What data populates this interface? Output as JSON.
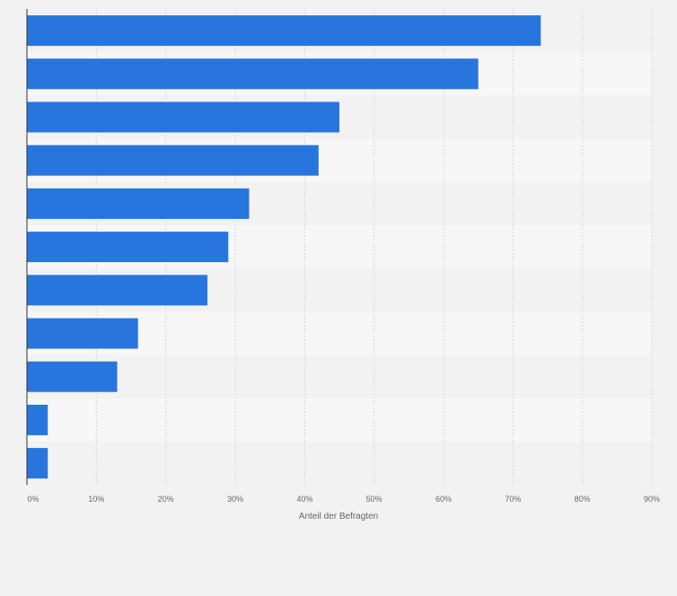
{
  "chart_data": {
    "type": "bar",
    "orientation": "horizontal",
    "categories": [
      "",
      "",
      "",
      "",
      "",
      "",
      "",
      "",
      "",
      "",
      ""
    ],
    "values": [
      74,
      65,
      45,
      42,
      32,
      29,
      26,
      16,
      13,
      3,
      3
    ],
    "xlabel": "Anteil der Befragten",
    "xlim": [
      0,
      90
    ],
    "xticks": [
      0,
      10,
      20,
      30,
      40,
      50,
      60,
      70,
      80,
      90
    ],
    "xtick_labels": [
      "0%",
      "10%",
      "20%",
      "30%",
      "40%",
      "50%",
      "60%",
      "70%",
      "80%",
      "90%"
    ],
    "grid": true,
    "bar_color": "#2876dd"
  },
  "colors": {
    "background": "#f2f2f2",
    "band_light": "#f7f7f8",
    "band_dark": "#f2f2f3",
    "gridline": "#d7d7d7",
    "axis": "#333333",
    "tick_text": "#666666"
  }
}
